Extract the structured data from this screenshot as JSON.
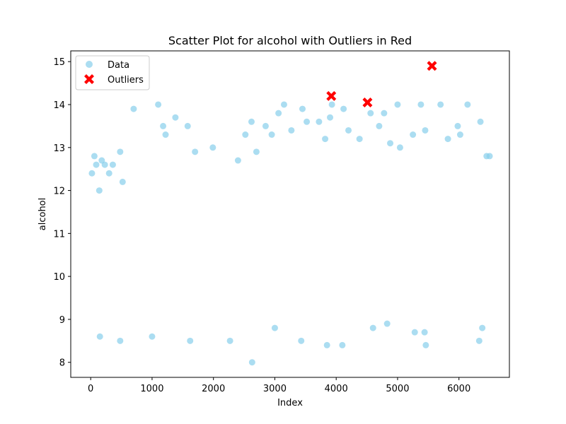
{
  "chart_data": {
    "type": "scatter",
    "title": "Scatter Plot for alcohol with Outliers in Red",
    "xlabel": "Index",
    "ylabel": "alcohol",
    "xlim": [
      -325,
      6822
    ],
    "ylim": [
      7.65,
      15.25
    ],
    "x_ticks": [
      0,
      1000,
      2000,
      3000,
      4000,
      5000,
      6000
    ],
    "y_ticks": [
      8,
      9,
      10,
      11,
      12,
      13,
      14,
      15
    ],
    "x_tick_labels": [
      "0",
      "1000",
      "2000",
      "3000",
      "4000",
      "5000",
      "6000"
    ],
    "y_tick_labels": [
      "8",
      "9",
      "10",
      "11",
      "12",
      "13",
      "14",
      "15"
    ],
    "grid": false,
    "legend_position": "top-left",
    "colors": {
      "data": "#87ceeb",
      "outliers": "#ff0000"
    },
    "series": [
      {
        "name": "Data",
        "marker": "circle",
        "note_points": "sampled representative points",
        "points": [
          [
            20,
            12.4
          ],
          [
            60,
            12.8
          ],
          [
            90,
            12.6
          ],
          [
            140,
            12.0
          ],
          [
            180,
            12.7
          ],
          [
            230,
            12.6
          ],
          [
            300,
            12.4
          ],
          [
            360,
            12.6
          ],
          [
            480,
            12.9
          ],
          [
            520,
            12.2
          ],
          [
            700,
            13.9
          ],
          [
            1100,
            14.0
          ],
          [
            1180,
            13.5
          ],
          [
            1220,
            13.3
          ],
          [
            1380,
            13.7
          ],
          [
            1580,
            13.5
          ],
          [
            1700,
            12.9
          ],
          [
            1990,
            13.0
          ],
          [
            2400,
            12.7
          ],
          [
            2520,
            13.3
          ],
          [
            2620,
            13.6
          ],
          [
            2700,
            12.9
          ],
          [
            2850,
            13.5
          ],
          [
            2950,
            13.3
          ],
          [
            3060,
            13.8
          ],
          [
            3150,
            14.0
          ],
          [
            3270,
            13.4
          ],
          [
            3450,
            13.9
          ],
          [
            3520,
            13.6
          ],
          [
            3720,
            13.6
          ],
          [
            3820,
            13.2
          ],
          [
            3900,
            13.7
          ],
          [
            3930,
            14.0
          ],
          [
            4120,
            13.9
          ],
          [
            4200,
            13.4
          ],
          [
            4380,
            13.2
          ],
          [
            4560,
            13.8
          ],
          [
            4700,
            13.5
          ],
          [
            4780,
            13.8
          ],
          [
            4880,
            13.1
          ],
          [
            5000,
            14.0
          ],
          [
            5040,
            13.0
          ],
          [
            5250,
            13.3
          ],
          [
            5380,
            14.0
          ],
          [
            5450,
            13.4
          ],
          [
            5700,
            14.0
          ],
          [
            5820,
            13.2
          ],
          [
            5980,
            13.5
          ],
          [
            6020,
            13.3
          ],
          [
            6140,
            14.0
          ],
          [
            6350,
            13.6
          ],
          [
            6450,
            12.8
          ],
          [
            6500,
            12.8
          ],
          [
            2630,
            8.0
          ],
          [
            1620,
            8.5
          ],
          [
            2270,
            8.5
          ],
          [
            3430,
            8.5
          ],
          [
            3850,
            8.4
          ],
          [
            4100,
            8.4
          ],
          [
            5460,
            8.4
          ],
          [
            6330,
            8.5
          ],
          [
            480,
            8.5
          ],
          [
            5280,
            8.7
          ],
          [
            5440,
            8.7
          ],
          [
            4600,
            8.8
          ],
          [
            3000,
            8.8
          ],
          [
            1000,
            8.6
          ],
          [
            150,
            8.6
          ],
          [
            6380,
            8.8
          ],
          [
            4830,
            8.9
          ]
        ]
      },
      {
        "name": "Outliers",
        "marker": "x",
        "points": [
          [
            3920,
            14.2
          ],
          [
            4510,
            14.05
          ],
          [
            5560,
            14.9
          ]
        ]
      }
    ]
  }
}
